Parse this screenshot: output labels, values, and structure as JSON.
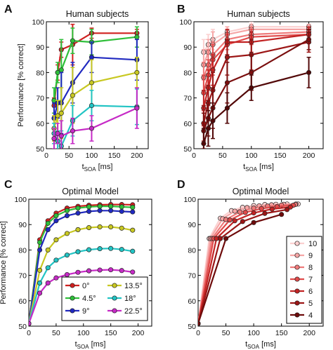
{
  "chart_data": [
    {
      "panel": "A",
      "type": "line",
      "title": "Human subjects",
      "xlabel": "t_SOA [ms]",
      "ylabel": "Performance [% correct]",
      "xlim": [
        0,
        225
      ],
      "ylim": [
        50,
        100
      ],
      "xticks": [
        0,
        50,
        100,
        150,
        200
      ],
      "yticks": [
        50,
        60,
        70,
        80,
        90,
        100
      ],
      "x": [
        17,
        25,
        33,
        58,
        100,
        200
      ],
      "grid": false,
      "series": [
        {
          "color": "#d0201f",
          "values": [
            67,
            80,
            89,
            91,
            95.5,
            95.5
          ],
          "err": [
            3,
            3,
            3,
            8,
            2,
            1.5
          ]
        },
        {
          "color": "#2fbf3a",
          "values": [
            69,
            80,
            81,
            92.5,
            92,
            94
          ],
          "err": [
            5,
            4,
            12,
            5,
            5,
            4
          ]
        },
        {
          "color": "#2029c0",
          "values": [
            62,
            68,
            68,
            76,
            86,
            85
          ],
          "err": [
            6,
            6,
            12,
            8,
            6,
            8
          ]
        },
        {
          "color": "#c8c822",
          "values": [
            58,
            63,
            64,
            71,
            76,
            80
          ],
          "err": [
            5,
            6,
            10,
            11,
            9,
            6
          ]
        },
        {
          "color": "#22c4c4",
          "values": [
            56,
            53,
            51,
            61,
            67,
            66.5
          ],
          "err": [
            4,
            4,
            6,
            6,
            6,
            7
          ]
        },
        {
          "color": "#c62ac6",
          "values": [
            54,
            56,
            55,
            57,
            58,
            66
          ],
          "err": [
            4,
            4,
            6,
            5,
            5,
            8
          ]
        }
      ]
    },
    {
      "panel": "B",
      "type": "line",
      "title": "Human subjects",
      "xlabel": "t_SOA [ms]",
      "ylabel": "",
      "xlim": [
        0,
        225
      ],
      "ylim": [
        50,
        100
      ],
      "xticks": [
        0,
        50,
        100,
        150,
        200
      ],
      "yticks": [
        50,
        60,
        70,
        80,
        90,
        100
      ],
      "x": [
        17,
        25,
        33,
        58,
        100,
        200
      ],
      "grid": false,
      "series": [
        {
          "color": "#fbd0d0",
          "values": [
            88,
            91,
            93,
            96,
            98,
            98
          ],
          "err": [
            5,
            4,
            4,
            2,
            2,
            1
          ]
        },
        {
          "color": "#f6a6a6",
          "values": [
            83,
            88,
            91,
            95,
            97,
            97
          ],
          "err": [
            6,
            5,
            5,
            3,
            2,
            2
          ]
        },
        {
          "color": "#ef7b7b",
          "values": [
            78,
            83,
            87,
            93,
            95,
            96
          ],
          "err": [
            6,
            6,
            5,
            4,
            3,
            2
          ]
        },
        {
          "color": "#e04b4b",
          "values": [
            72,
            79,
            85,
            91,
            94,
            95
          ],
          "err": [
            7,
            6,
            6,
            4,
            3,
            2
          ]
        },
        {
          "color": "#c22424",
          "values": [
            66,
            74,
            81,
            92,
            92,
            95
          ],
          "err": [
            7,
            7,
            6,
            5,
            4,
            3
          ]
        },
        {
          "color": "#9c1616",
          "values": [
            60,
            68,
            73,
            86,
            87,
            92
          ],
          "err": [
            7,
            7,
            7,
            7,
            6,
            4
          ]
        },
        {
          "color": "#7a0e0e",
          "values": [
            57,
            62,
            66,
            76,
            80,
            93
          ],
          "err": [
            7,
            7,
            8,
            8,
            7,
            4
          ]
        },
        {
          "color": "#520808",
          "values": [
            52,
            58,
            61,
            66,
            74,
            80
          ],
          "err": [
            6,
            7,
            7,
            6,
            5,
            6
          ]
        }
      ]
    },
    {
      "panel": "C",
      "type": "line",
      "title": "Optimal Model",
      "xlabel": "t_SOA [ms]",
      "ylabel": "Performance [% correct]",
      "xlim": [
        0,
        225
      ],
      "ylim": [
        50,
        100
      ],
      "xticks": [
        0,
        50,
        100,
        150,
        200
      ],
      "yticks": [
        50,
        60,
        70,
        80,
        90,
        100
      ],
      "x": [
        0,
        20,
        35,
        50,
        70,
        90,
        110,
        130,
        150,
        170,
        190
      ],
      "grid": false,
      "legend_position": "bottom-right",
      "series": [
        {
          "name": "0°",
          "color": "#d0201f",
          "values": [
            51,
            84,
            91.5,
            94.5,
            96.5,
            97.2,
            97.6,
            97.8,
            97.9,
            97.9,
            97.8
          ]
        },
        {
          "name": "4.5°",
          "color": "#2fbf3a",
          "values": [
            51,
            83,
            90.5,
            93.5,
            95.5,
            96.5,
            97,
            97.2,
            97.2,
            97,
            96.8
          ]
        },
        {
          "name": "9°",
          "color": "#2029c0",
          "values": [
            51,
            80,
            88,
            91.5,
            93.5,
            94.5,
            95.2,
            95.5,
            95.5,
            95.2,
            95
          ]
        },
        {
          "name": "13.5°",
          "color": "#c8c822",
          "values": [
            51,
            72,
            80,
            84,
            86.5,
            88,
            88.8,
            89.1,
            89.1,
            88.6,
            87.8
          ]
        },
        {
          "name": "18°",
          "color": "#22c4c4",
          "values": [
            51,
            67,
            73,
            76,
            78,
            79.3,
            80.1,
            80.5,
            80.6,
            80.2,
            79.5
          ]
        },
        {
          "name": "22.5°",
          "color": "#c62ac6",
          "values": [
            51,
            63,
            67,
            69,
            70.3,
            71.2,
            71.8,
            72.1,
            72.2,
            71.9,
            71.3
          ]
        }
      ]
    },
    {
      "panel": "D",
      "type": "line",
      "title": "Optimal Model",
      "xlabel": "t_SOA [ms]",
      "ylabel": "",
      "xlim": [
        0,
        225
      ],
      "ylim": [
        50,
        100
      ],
      "xticks": [
        0,
        50,
        100,
        150,
        200
      ],
      "yticks": [
        50,
        60,
        70,
        80,
        90,
        100
      ],
      "grid": false,
      "legend_position": "bottom-right",
      "series": [
        {
          "name": "10",
          "color": "#fbd0d0",
          "x": [
            0,
            20,
            40,
            60,
            80,
            100,
            120,
            140,
            160,
            180
          ],
          "values": [
            51,
            84.5,
            92.5,
            95.5,
            96.8,
            97.5,
            97.9,
            98,
            98.1,
            98.1
          ]
        },
        {
          "name": "9",
          "color": "#f6a6a6",
          "x": [
            0,
            22,
            44,
            66,
            88,
            110,
            132,
            154,
            176
          ],
          "values": [
            51,
            84.5,
            92.3,
            95.3,
            96.7,
            97.4,
            97.8,
            98,
            98.1
          ]
        },
        {
          "name": "8",
          "color": "#ef7b7b",
          "x": [
            0,
            25,
            50,
            75,
            100,
            125,
            150,
            175
          ],
          "values": [
            51,
            84.5,
            92,
            95,
            96.5,
            97.3,
            97.7,
            97.9
          ]
        },
        {
          "name": "7",
          "color": "#e04b4b",
          "x": [
            0,
            28,
            57,
            85,
            114,
            142,
            171
          ],
          "values": [
            51,
            84.5,
            91.8,
            94.8,
            96.3,
            97.1,
            97.6
          ]
        },
        {
          "name": "6",
          "color": "#c22424",
          "x": [
            0,
            33,
            66,
            100,
            133,
            166
          ],
          "values": [
            51,
            84.5,
            91.5,
            94.6,
            96.1,
            96.9
          ]
        },
        {
          "name": "5",
          "color": "#9c1616",
          "x": [
            0,
            40,
            80,
            120,
            160
          ],
          "values": [
            51,
            84.5,
            91.2,
            94.4,
            95.9
          ]
        },
        {
          "name": "4",
          "color": "#6e0b0b",
          "x": [
            0,
            50,
            100,
            150
          ],
          "values": [
            51,
            84.5,
            90.8,
            94
          ]
        }
      ]
    }
  ]
}
